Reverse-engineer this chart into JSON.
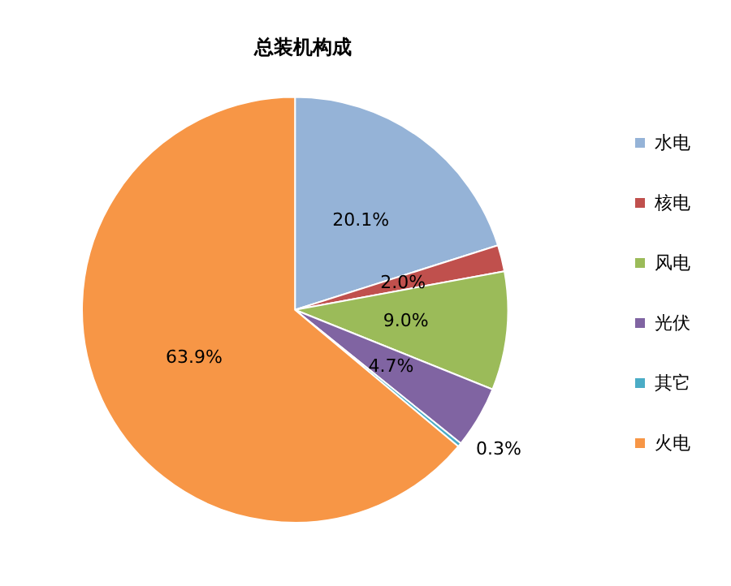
{
  "chart_data": {
    "type": "pie",
    "title": "总装机构成",
    "categories": [
      "水电",
      "核电",
      "风电",
      "光伏",
      "其它",
      "火电"
    ],
    "values": [
      20.1,
      2.0,
      9.0,
      4.7,
      0.3,
      63.9
    ],
    "value_labels": [
      "20.1%",
      "2.0%",
      "9.0%",
      "4.7%",
      "0.3%",
      "63.9%"
    ],
    "colors": [
      "#95b3d7",
      "#c0504d",
      "#9bbb59",
      "#8064a2",
      "#4bacc6",
      "#f79646"
    ],
    "legend": "right"
  }
}
